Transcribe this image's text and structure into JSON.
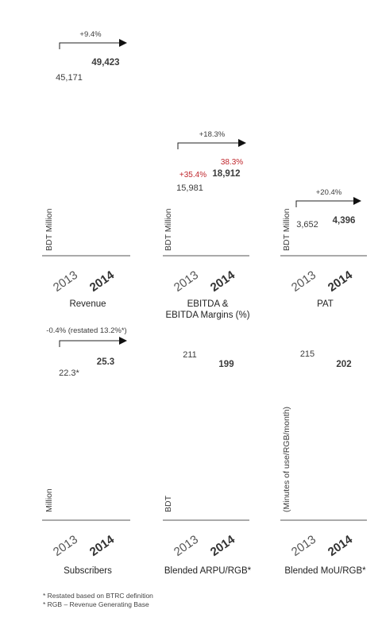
{
  "colors": {
    "text": "#3c3c3c",
    "highlight": "#c0272d",
    "axis": "#555555"
  },
  "chart_data": [
    {
      "type": "bar",
      "title": "Revenue",
      "ylabel": "BDT Million",
      "categories": [
        "2013",
        "2014"
      ],
      "values": [
        45171,
        49423
      ],
      "value_labels": [
        "45,171",
        "49,423"
      ],
      "growth": "+9.4%"
    },
    {
      "type": "bar",
      "title": "EBITDA & EBITDA Margins (%)",
      "title_lines": [
        "EBITDA &",
        "EBITDA Margins (%)"
      ],
      "ylabel": "BDT Million",
      "categories": [
        "2013",
        "2014"
      ],
      "values": [
        15981,
        18912
      ],
      "value_labels": [
        "15,981",
        "18,912"
      ],
      "margins": [
        "+35.4%",
        "38.3%"
      ],
      "growth": "+18.3%"
    },
    {
      "type": "bar",
      "title": "PAT",
      "ylabel": "BDT Million",
      "categories": [
        "2013",
        "2014"
      ],
      "values": [
        3652,
        4396
      ],
      "value_labels": [
        "3,652",
        "4,396"
      ],
      "growth": "+20.4%"
    },
    {
      "type": "bar",
      "title": "Subscribers",
      "ylabel": "Million",
      "categories": [
        "2013",
        "2014"
      ],
      "values": [
        22.3,
        25.3
      ],
      "value_labels": [
        "22.3*",
        "25.3"
      ],
      "growth": "-0.4% (restated 13.2%*)"
    },
    {
      "type": "bar",
      "title": "Blended ARPU/RGB*",
      "ylabel": "BDT",
      "categories": [
        "2013",
        "2014"
      ],
      "values": [
        211,
        199
      ],
      "value_labels": [
        "211",
        "199"
      ]
    },
    {
      "type": "bar",
      "title": "Blended MoU/RGB*",
      "ylabel": "(Minutes of use/RGB/month)",
      "categories": [
        "2013",
        "2014"
      ],
      "values": [
        215,
        202
      ],
      "value_labels": [
        "215",
        "202"
      ]
    }
  ],
  "footnotes": [
    "* Restated based on BTRC definition",
    "* RGB – Revenue Generating Base"
  ]
}
